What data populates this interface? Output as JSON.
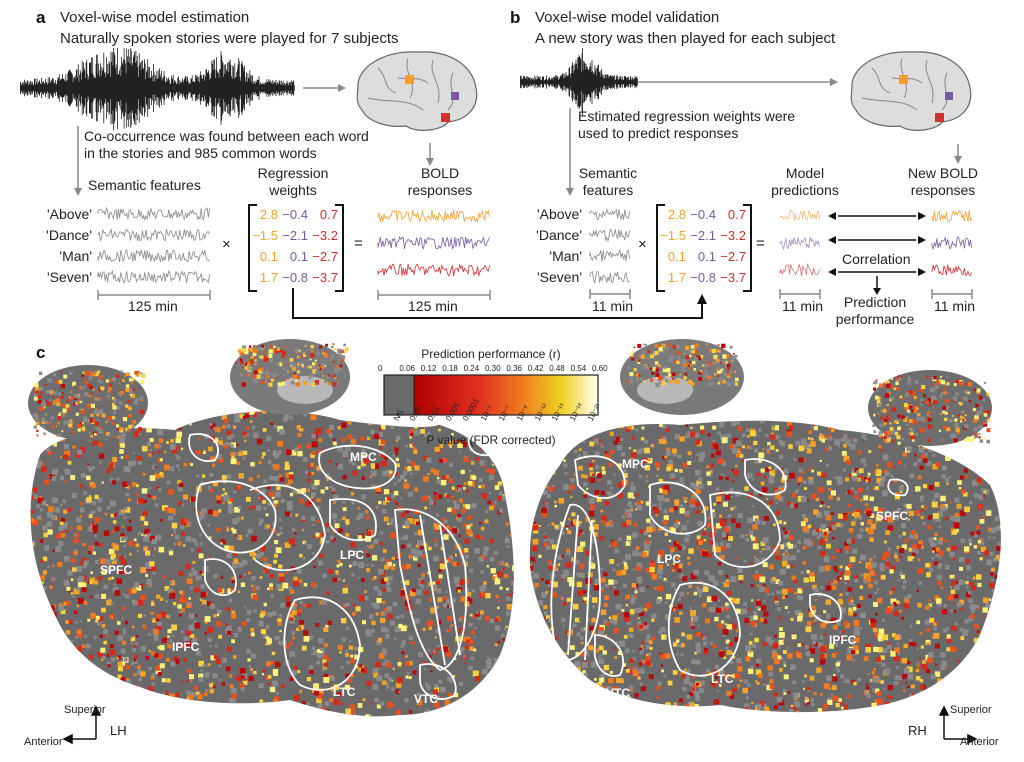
{
  "panel_a": {
    "label": "a",
    "title": "Voxel-wise model estimation",
    "subtitle": "Naturally spoken stories were played for 7 subjects",
    "cooccurrence": [
      "Co-occurrence was found between each word",
      "in the stories and 985 common words"
    ],
    "semantic_features": "Semantic features",
    "regression_weights": [
      "Regression",
      "weights"
    ],
    "bold_responses": [
      "BOLD",
      "responses"
    ],
    "words": [
      "'Above'",
      "'Dance'",
      "'Man'",
      "'Seven'"
    ],
    "weights": [
      [
        "2.8",
        "−0.4",
        "0.7"
      ],
      [
        "−1.5",
        "−2.1",
        "−3.2"
      ],
      [
        "0.1",
        "0.1",
        "−2.7"
      ],
      [
        "1.7",
        "−0.8",
        "−3.7"
      ]
    ],
    "times": "×",
    "equals": "=",
    "duration_features": "125 min",
    "duration_bold": "125 min"
  },
  "panel_b": {
    "label": "b",
    "title": "Voxel-wise model validation",
    "subtitle": "A new story was then played for each subject",
    "estimated": [
      "Estimated regression weights were",
      "used to predict responses"
    ],
    "semantic_features": [
      "Semantic",
      "features"
    ],
    "model_predictions": [
      "Model",
      "predictions"
    ],
    "new_bold": [
      "New BOLD",
      "responses"
    ],
    "words": [
      "'Above'",
      "'Dance'",
      "'Man'",
      "'Seven'"
    ],
    "weights": [
      [
        "2.8",
        "−0.4",
        "0.7"
      ],
      [
        "−1.5",
        "−2.1",
        "−3.2"
      ],
      [
        "0.1",
        "0.1",
        "−2.7"
      ],
      [
        "1.7",
        "−0.8",
        "−3.7"
      ]
    ],
    "times": "×",
    "equals": "=",
    "correlation": "Correlation",
    "prediction_performance": [
      "Prediction",
      "performance"
    ],
    "duration_features": "11 min",
    "duration_pred": "11 min",
    "duration_bold": "11 min"
  },
  "panel_c": {
    "label": "c",
    "colorbar_title": "Prediction performance (r)",
    "r_ticks": [
      "0",
      "0.06",
      "0.12",
      "0.18",
      "0.24",
      "0.30",
      "0.36",
      "0.42",
      "0.48",
      "0.54",
      "0.60"
    ],
    "p_ticks": [
      "NS",
      "0.05",
      "0.01",
      "0.001",
      "0.0001",
      "10⁻⁵",
      "10⁻⁷",
      "10⁻⁹",
      "10⁻¹²",
      "10⁻¹⁵",
      "10⁻¹⁸",
      "10⁻²¹"
    ],
    "p_title": "P value (FDR corrected)",
    "left_rois": [
      "MPC",
      "LPC",
      "SPFC",
      "IPFC",
      "LTC",
      "VTC"
    ],
    "right_rois": [
      "MPC",
      "LPC",
      "SPFC",
      "IPFC",
      "LTC",
      "VTC"
    ],
    "lh": "LH",
    "rh": "RH",
    "superior": "Superior",
    "anterior": "Anterior"
  },
  "colors": {
    "orange": "#f0a030",
    "purple": "#7a5aa0",
    "red": "#d03030",
    "trace_gray": "#888888",
    "brain_gray": "#6a6a6a"
  }
}
